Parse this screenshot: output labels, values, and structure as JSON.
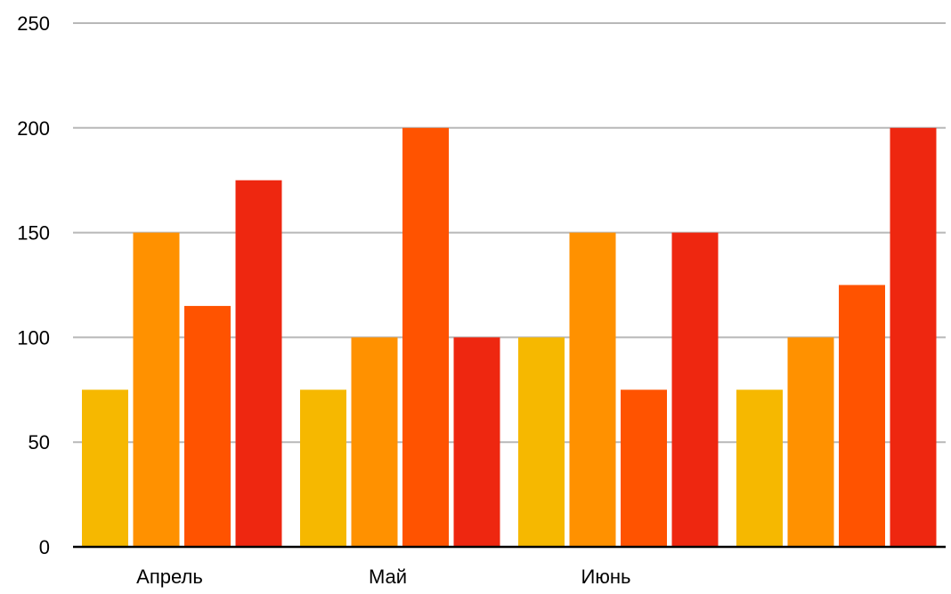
{
  "chart_data": {
    "type": "bar",
    "categories": [
      "Апрель",
      "Май",
      "Июнь",
      ""
    ],
    "series": [
      {
        "color": "#F6B800",
        "values": [
          75,
          75,
          100,
          75
        ]
      },
      {
        "color": "#FF9100",
        "values": [
          150,
          100,
          150,
          100
        ]
      },
      {
        "color": "#FF5300",
        "values": [
          115,
          200,
          75,
          125
        ]
      },
      {
        "color": "#EE2710",
        "values": [
          175,
          100,
          150,
          200
        ]
      }
    ],
    "yticks": [
      "0",
      "50",
      "100",
      "150",
      "200",
      "250"
    ],
    "ylim": [
      0,
      250
    ],
    "grid": true,
    "legend": "none",
    "title": "",
    "xlabel": "",
    "ylabel": ""
  }
}
